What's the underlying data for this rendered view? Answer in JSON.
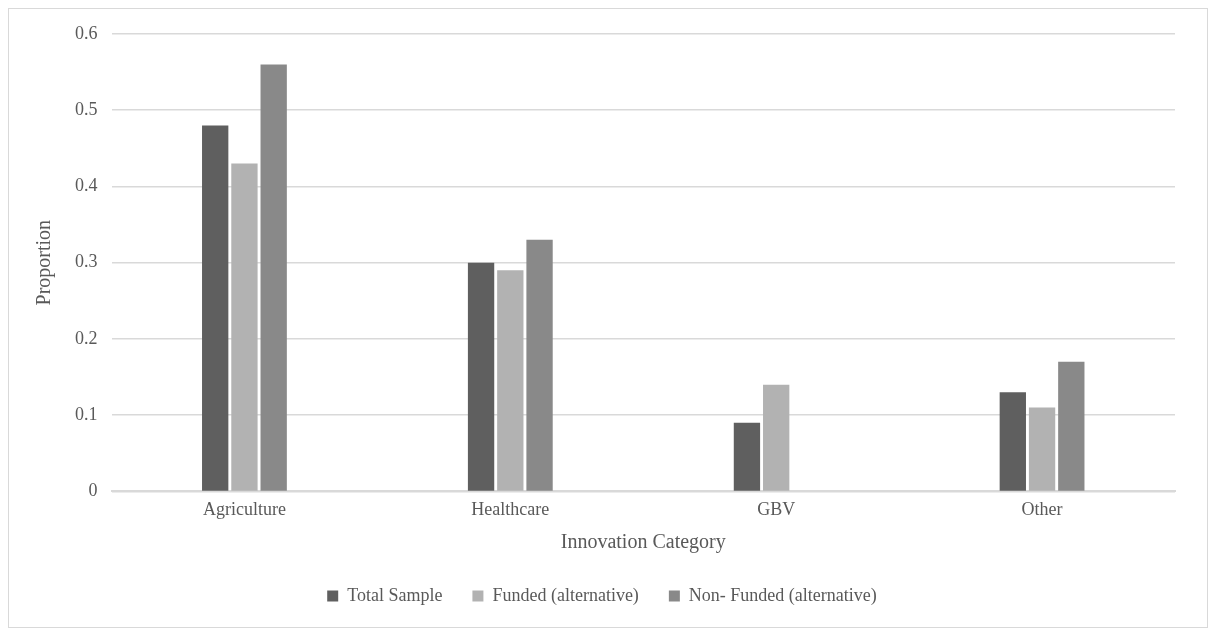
{
  "chart_data": {
    "type": "bar",
    "xlabel": "Innovation Category",
    "ylabel": "Proportion",
    "categories": [
      "Agriculture",
      "Healthcare",
      "GBV",
      "Other"
    ],
    "series": [
      {
        "name": "Total Sample",
        "color": "#5f5f5f",
        "values": [
          0.48,
          0.3,
          0.09,
          0.13
        ]
      },
      {
        "name": "Funded (alternative)",
        "color": "#b2b2b2",
        "values": [
          0.43,
          0.29,
          0.14,
          0.11
        ]
      },
      {
        "name": "Non- Funded (alternative)",
        "color": "#898989",
        "values": [
          0.56,
          0.33,
          null,
          0.17
        ]
      }
    ],
    "ylim": [
      0,
      0.6
    ],
    "yticks": [
      0,
      0.1,
      0.2,
      0.3,
      0.4,
      0.5,
      0.6
    ],
    "grid": "y",
    "legend": "bottom"
  }
}
